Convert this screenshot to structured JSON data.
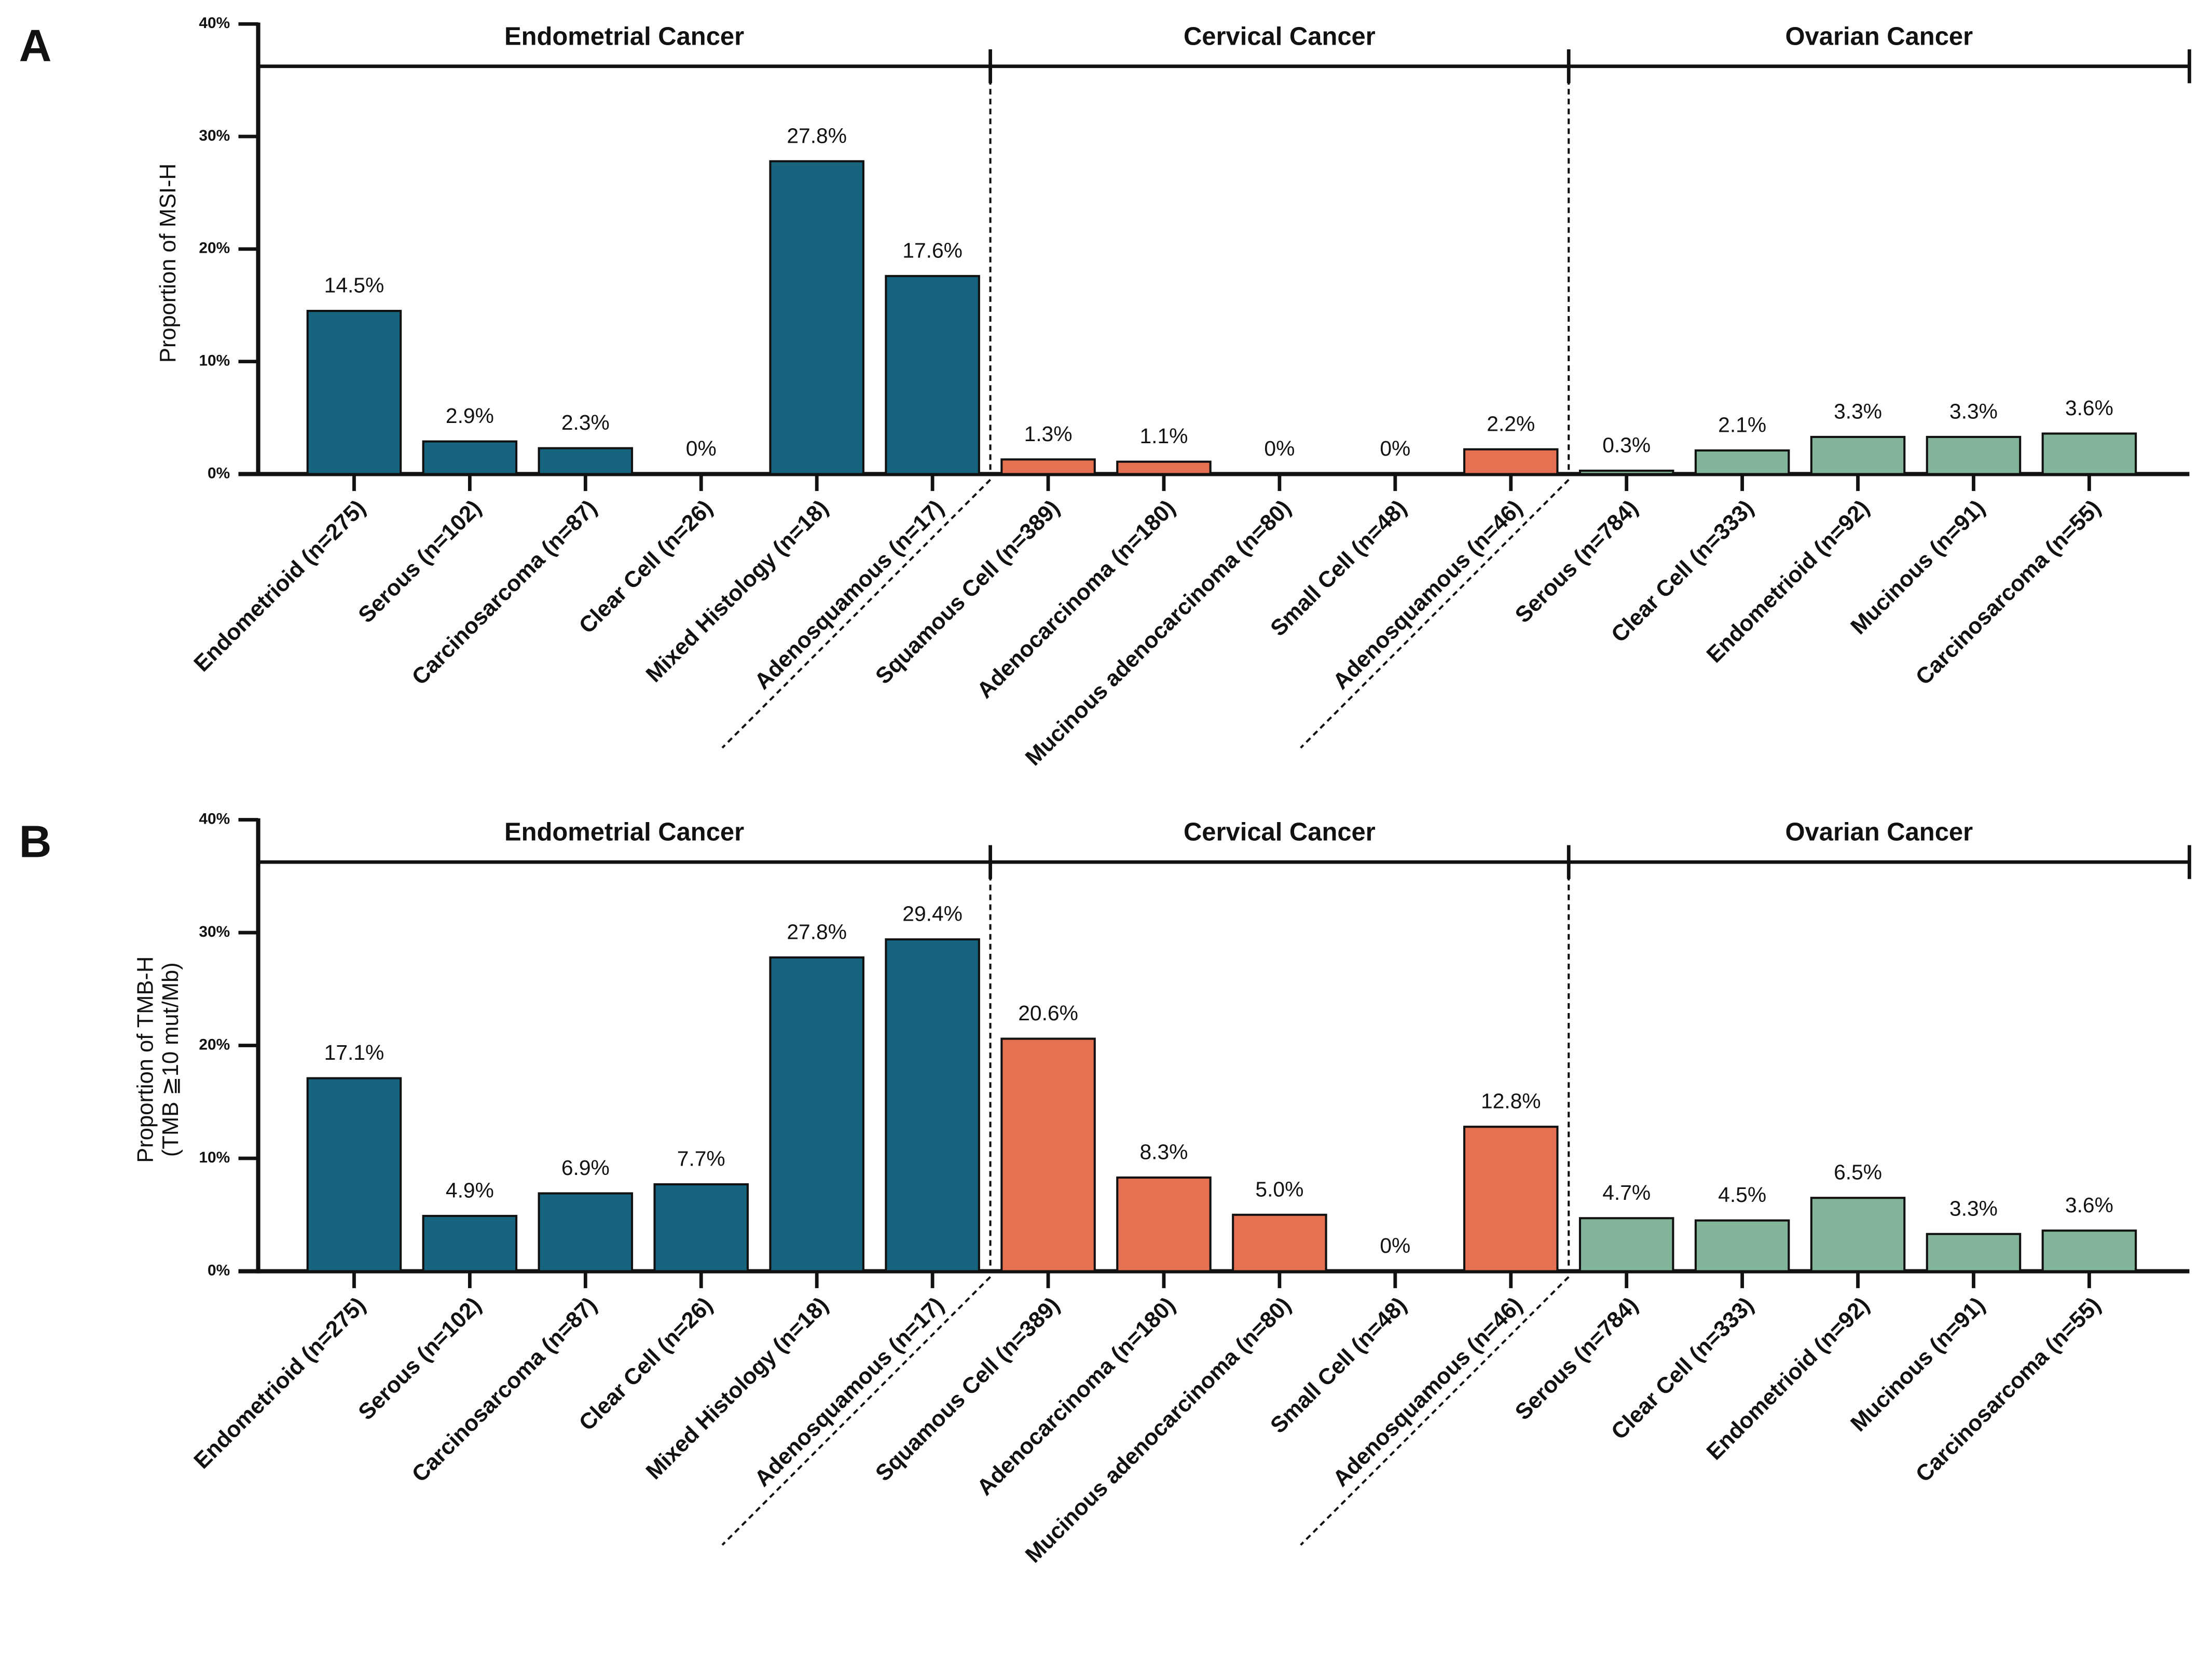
{
  "chart_data": [
    {
      "type": "bar",
      "panel": "A",
      "ylabel": [
        "Proportion of MSI-H"
      ],
      "ylim": [
        0,
        40
      ],
      "yticks": [
        {
          "value": 0,
          "label": "0%"
        },
        {
          "value": 10,
          "label": "10%"
        },
        {
          "value": 20,
          "label": "20%"
        },
        {
          "value": 30,
          "label": "30%"
        },
        {
          "value": 40,
          "label": "40%"
        }
      ],
      "series": [
        {
          "name": "Endometrial Cancer",
          "color": "#17647f",
          "categories": [
            "Endometrioid (n=275)",
            "Serous (n=102)",
            "Carcinosarcoma (n=87)",
            "Clear Cell (n=26)",
            "Mixed Histology (n=18)",
            "Adenosquamous (n=17)"
          ],
          "values": [
            14.5,
            2.9,
            2.3,
            0,
            27.8,
            17.6
          ],
          "value_labels": [
            "14.5%",
            "2.9%",
            "2.3%",
            "0%",
            "27.8%",
            "17.6%"
          ]
        },
        {
          "name": "Cervical Cancer",
          "color": "#e67052",
          "categories": [
            "Squamous Cell (n=389)",
            "Adenocarcinoma (n=180)",
            "Mucinous adenocarcinoma (n=80)",
            "Small Cell (n=48)",
            "Adenosquamous (n=46)"
          ],
          "values": [
            1.3,
            1.1,
            0,
            0,
            2.2
          ],
          "value_labels": [
            "1.3%",
            "1.1%",
            "0%",
            "0%",
            "2.2%"
          ]
        },
        {
          "name": "Ovarian Cancer",
          "color": "#82b59a",
          "categories": [
            "Serous (n=784)",
            "Clear Cell (n=333)",
            "Endometrioid (n=92)",
            "Mucinous (n=91)",
            "Carcinosarcoma (n=55)"
          ],
          "values": [
            0.3,
            2.1,
            3.3,
            3.3,
            3.6
          ],
          "value_labels": [
            "0.3%",
            "2.1%",
            "3.3%",
            "3.3%",
            "3.6%"
          ]
        }
      ]
    },
    {
      "type": "bar",
      "panel": "B",
      "ylabel": [
        "Proportion of TMB-H",
        "(TMB ≧10 mut/Mb)"
      ],
      "ylim": [
        0,
        40
      ],
      "yticks": [
        {
          "value": 0,
          "label": "0%"
        },
        {
          "value": 10,
          "label": "10%"
        },
        {
          "value": 20,
          "label": "20%"
        },
        {
          "value": 30,
          "label": "30%"
        },
        {
          "value": 40,
          "label": "40%"
        }
      ],
      "series": [
        {
          "name": "Endometrial Cancer",
          "color": "#17647f",
          "categories": [
            "Endometrioid (n=275)",
            "Serous (n=102)",
            "Carcinosarcoma (n=87)",
            "Clear Cell (n=26)",
            "Mixed Histology (n=18)",
            "Adenosquamous (n=17)"
          ],
          "values": [
            17.1,
            4.9,
            6.9,
            7.7,
            27.8,
            29.4
          ],
          "value_labels": [
            "17.1%",
            "4.9%",
            "6.9%",
            "7.7%",
            "27.8%",
            "29.4%"
          ]
        },
        {
          "name": "Cervical Cancer",
          "color": "#e67052",
          "categories": [
            "Squamous Cell (n=389)",
            "Adenocarcinoma (n=180)",
            "Mucinous adenocarcinoma (n=80)",
            "Small Cell (n=48)",
            "Adenosquamous (n=46)"
          ],
          "values": [
            20.6,
            8.3,
            5.0,
            0,
            12.8
          ],
          "value_labels": [
            "20.6%",
            "8.3%",
            "5.0%",
            "0%",
            "12.8%"
          ]
        },
        {
          "name": "Ovarian Cancer",
          "color": "#82b59a",
          "categories": [
            "Serous (n=784)",
            "Clear Cell (n=333)",
            "Endometrioid (n=92)",
            "Mucinous (n=91)",
            "Carcinosarcoma (n=55)"
          ],
          "values": [
            4.7,
            4.5,
            6.5,
            3.3,
            3.6
          ],
          "value_labels": [
            "4.7%",
            "4.5%",
            "6.5%",
            "3.3%",
            "3.6%"
          ]
        }
      ]
    }
  ]
}
